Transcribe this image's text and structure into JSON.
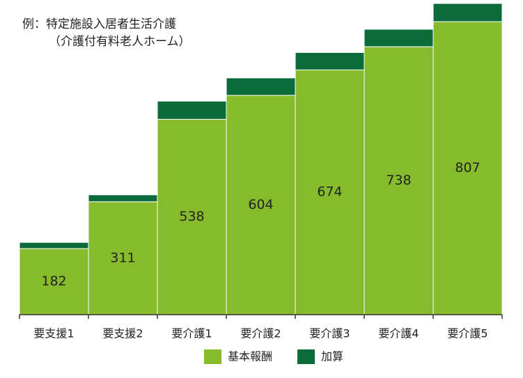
{
  "chart_data": {
    "type": "stacked-bar",
    "title": "例：特定施設入居者生活介護",
    "subtitle": "（介護付有料老人ホーム）",
    "categories": [
      "要支援1",
      "要支援2",
      "要介護1",
      "要介護2",
      "要介護3",
      "要介護4",
      "要介護5"
    ],
    "series": [
      {
        "name": "基本報酬",
        "color": "#86bb2b",
        "values": [
          182,
          311,
          538,
          604,
          674,
          738,
          807
        ],
        "labels": true
      },
      {
        "name": "加算",
        "color": "#0b6b3a",
        "values": [
          17,
          19,
          50,
          48,
          48,
          48,
          50
        ],
        "labels": false
      }
    ],
    "legend": "bottom"
  }
}
